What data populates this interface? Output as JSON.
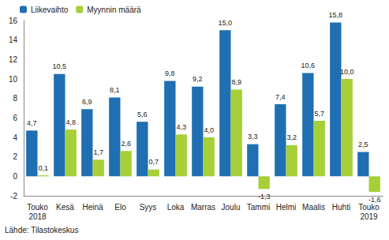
{
  "chart_data": {
    "type": "bar",
    "categories": [
      "Touko\n2018",
      "Kesä",
      "Heinä",
      "Elo",
      "Syys",
      "Loka",
      "Marras",
      "Joulu",
      "Tammi",
      "Helmi",
      "Maalis",
      "Huhti",
      "Touko\n2019"
    ],
    "series": [
      {
        "name": "Liikevaihto",
        "color": "#1f6fb2",
        "values": [
          4.7,
          10.5,
          6.9,
          8.1,
          5.6,
          9.8,
          9.2,
          15.0,
          3.3,
          7.4,
          10.6,
          15.8,
          2.5
        ],
        "value_labels": [
          "4,7",
          "10,5",
          "6,9",
          "8,1",
          "5,6",
          "9,8",
          "9,2",
          "15,0",
          "3,3",
          "7,4",
          "10,6",
          "15,8",
          "2,5"
        ]
      },
      {
        "name": "Myynnin määrä",
        "color": "#a6cf38",
        "values": [
          0.1,
          4.8,
          1.7,
          2.6,
          0.7,
          4.3,
          4.0,
          8.9,
          -1.3,
          3.2,
          5.7,
          10.0,
          -1.6
        ],
        "value_labels": [
          "0,1",
          "4,8",
          "1,7",
          "2,6",
          "0,7",
          "4,3",
          "4,0",
          "8,9",
          "-1,3",
          "3,2",
          "5,7",
          "10,0",
          "-1,6"
        ]
      }
    ],
    "ylim": [
      -2,
      16
    ],
    "yticks": [
      -2,
      0,
      2,
      4,
      6,
      8,
      10,
      12,
      14,
      16
    ],
    "grid": false,
    "legend": "top-left",
    "data_labels": true,
    "source": "Lähde: Tilastokeskus"
  }
}
